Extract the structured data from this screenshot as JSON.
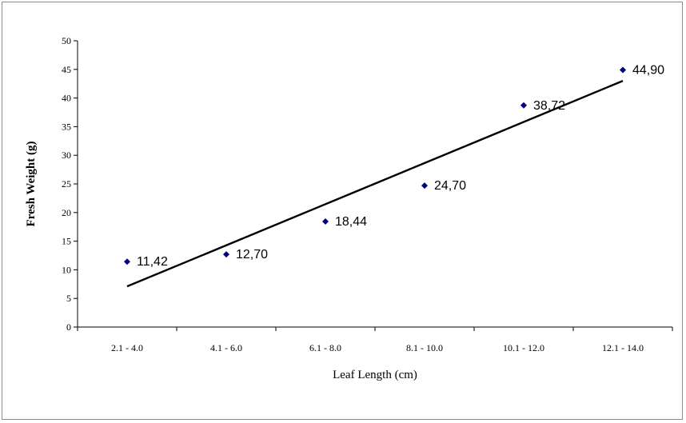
{
  "chart_data": {
    "type": "scatter",
    "title": "",
    "xlabel": "Leaf Length (cm)",
    "ylabel": "Fresh Weight (g)",
    "categories": [
      "2.1 - 4.0",
      "4.1 - 6.0",
      "6.1 - 8.0",
      "8.1 - 10.0",
      "10.1 - 12.0",
      "12.1 - 14.0"
    ],
    "values": [
      11.42,
      12.7,
      18.44,
      24.7,
      38.72,
      44.9
    ],
    "data_labels": [
      "11,42",
      "12,70",
      "18,44",
      "24,70",
      "38,72",
      "44,90"
    ],
    "ylim": [
      0,
      50
    ],
    "yticks": [
      0,
      5,
      10,
      15,
      20,
      25,
      30,
      35,
      40,
      45,
      50
    ],
    "trendline": {
      "type": "linear",
      "start_value": 7.1,
      "end_value": 43.0
    },
    "grid": false,
    "legend": "none",
    "marker_color": "#000080",
    "line_color": "#000000"
  }
}
